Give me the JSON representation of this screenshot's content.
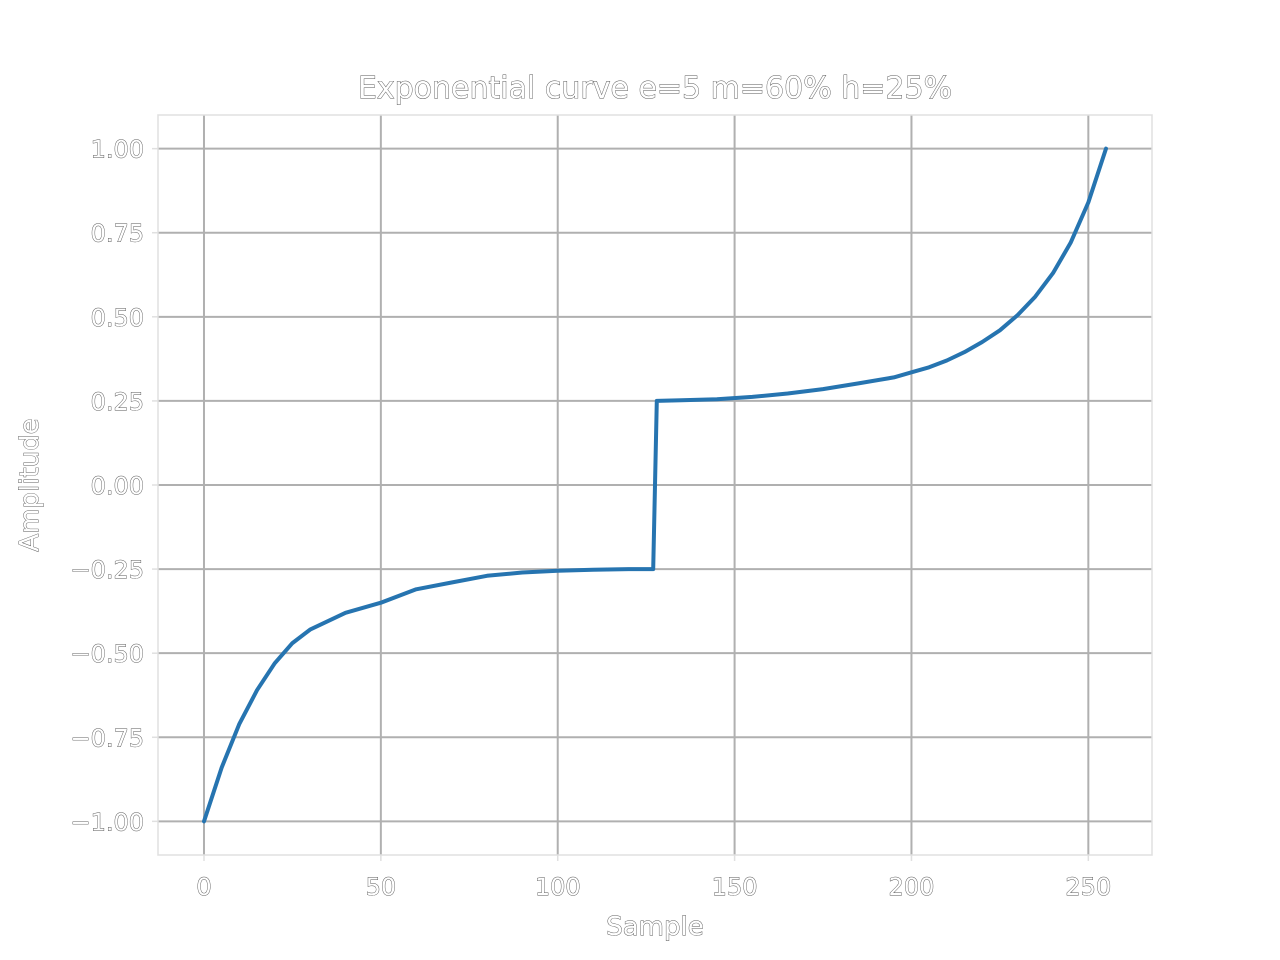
{
  "chart_data": {
    "type": "line",
    "title": "Exponential curve e=5 m=60% h=25%",
    "xlabel": "Sample",
    "ylabel": "Amplitude",
    "xlim": [
      -13,
      268
    ],
    "ylim": [
      -1.1,
      1.1
    ],
    "xticks": [
      0,
      50,
      100,
      150,
      200,
      250
    ],
    "xtick_labels": [
      "0",
      "50",
      "100",
      "150",
      "200",
      "250"
    ],
    "yticks": [
      1.0,
      0.75,
      0.5,
      0.25,
      0.0,
      -0.25,
      -0.5,
      -0.75,
      -1.0
    ],
    "ytick_labels": [
      "1.00",
      "0.75",
      "0.50",
      "0.25",
      "0.00",
      "−0.25",
      "−0.50",
      "−0.75",
      "−1.00"
    ],
    "grid": true,
    "series": [
      {
        "color": "#2674b0",
        "x": [
          0,
          5,
          10,
          15,
          20,
          25,
          30,
          40,
          50,
          60,
          70,
          80,
          90,
          100,
          110,
          120,
          127,
          128,
          135,
          145,
          155,
          165,
          175,
          185,
          195,
          200,
          205,
          210,
          215,
          220,
          225,
          230,
          235,
          240,
          245,
          250,
          255
        ],
        "y": [
          -1.0,
          -0.84,
          -0.71,
          -0.61,
          -0.53,
          -0.47,
          -0.43,
          -0.38,
          -0.35,
          -0.31,
          -0.29,
          -0.27,
          -0.26,
          -0.255,
          -0.252,
          -0.25,
          -0.25,
          0.25,
          0.252,
          0.255,
          0.262,
          0.272,
          0.285,
          0.302,
          0.32,
          0.335,
          0.35,
          0.37,
          0.395,
          0.425,
          0.46,
          0.505,
          0.56,
          0.63,
          0.72,
          0.84,
          1.0
        ]
      }
    ]
  }
}
